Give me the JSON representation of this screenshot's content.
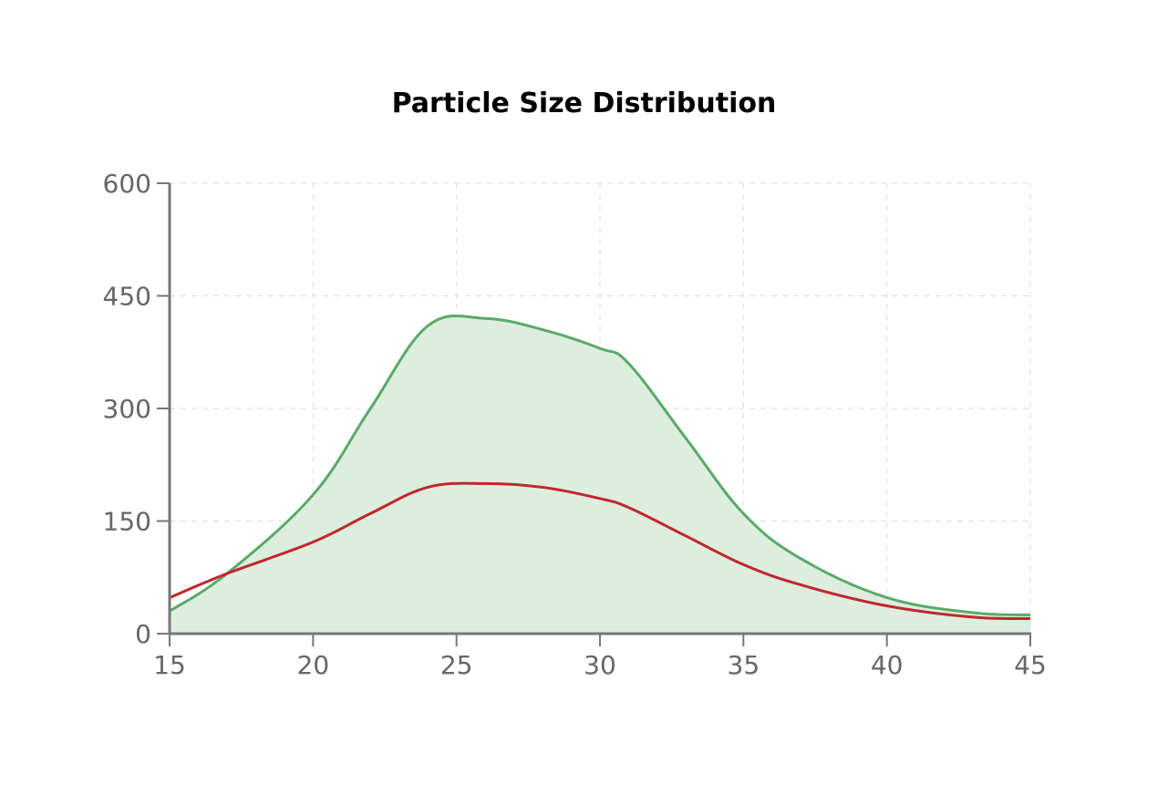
{
  "chart_data": {
    "type": "area",
    "title": "Particle Size Distribution",
    "xlabel": "",
    "ylabel": "",
    "xlim": [
      15,
      45
    ],
    "ylim": [
      0,
      600
    ],
    "x_ticks": [
      15,
      20,
      25,
      30,
      35,
      40,
      45
    ],
    "y_ticks": [
      0,
      150,
      300,
      450,
      600
    ],
    "grid": true,
    "legend": "none",
    "series": [
      {
        "style": "area",
        "color": "#5aaa68",
        "fill_color": "#ddeedf",
        "x": [
          15,
          17,
          20,
          22,
          24,
          26,
          28,
          30,
          31,
          33,
          35,
          37,
          40,
          43,
          45
        ],
        "y": [
          30,
          80,
          185,
          300,
          410,
          420,
          405,
          380,
          360,
          260,
          160,
          100,
          48,
          28,
          25
        ]
      },
      {
        "style": "line",
        "color": "#c1272d",
        "x": [
          15,
          17,
          20,
          22,
          24,
          26,
          28,
          30,
          31,
          33,
          35,
          37,
          40,
          43,
          45
        ],
        "y": [
          48,
          80,
          122,
          160,
          195,
          200,
          195,
          180,
          168,
          130,
          92,
          65,
          37,
          22,
          20
        ]
      }
    ]
  }
}
